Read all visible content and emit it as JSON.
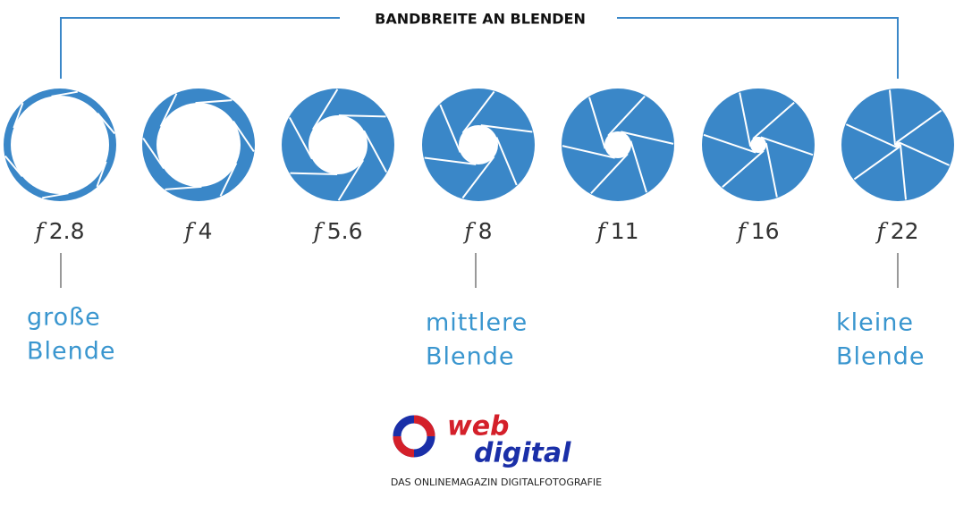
{
  "title": "BANDBREITE AN BLENDEN",
  "apertures": [
    {
      "symbol": "f",
      "number": "2.8"
    },
    {
      "symbol": "f",
      "number": "4"
    },
    {
      "symbol": "f",
      "number": "5.6"
    },
    {
      "symbol": "f",
      "number": "8"
    },
    {
      "symbol": "f",
      "number": "11"
    },
    {
      "symbol": "f",
      "number": "16"
    },
    {
      "symbol": "f",
      "number": "22"
    }
  ],
  "annotations": [
    {
      "lines": [
        "große",
        "Blende"
      ]
    },
    {
      "lines": [
        "mittlere",
        "Blende"
      ]
    },
    {
      "lines": [
        "kleine",
        "Blende"
      ]
    }
  ],
  "logo": {
    "word1": "web",
    "word2": "digital",
    "tagline": "DAS ONLINEMAGAZIN DIGITALFOTOGRAFIE"
  }
}
